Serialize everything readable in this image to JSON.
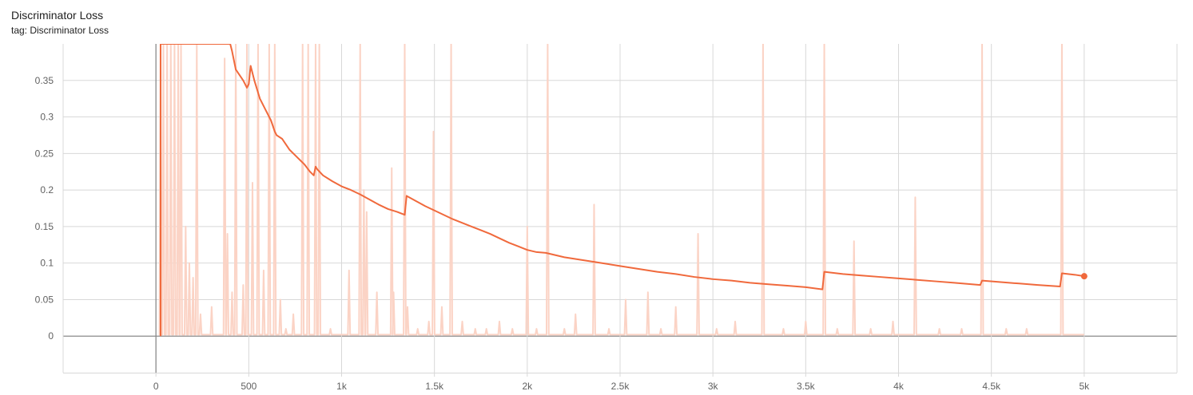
{
  "card": {
    "title": "Discriminator Loss",
    "tag": "tag: Discriminator Loss"
  },
  "colors": {
    "smoothed": "#f0693c",
    "raw": "#fbd3c5",
    "grid": "#d8d8d8",
    "zero_axis": "#8a8a8a"
  },
  "chart_data": {
    "type": "line",
    "title": "Discriminator Loss",
    "xlabel": "",
    "ylabel": "",
    "xlim": [
      -500,
      5500
    ],
    "ylim": [
      -0.05,
      0.4
    ],
    "grid": true,
    "x_ticks": [
      {
        "value": 0,
        "label": "0"
      },
      {
        "value": 500,
        "label": "500"
      },
      {
        "value": 1000,
        "label": "1k"
      },
      {
        "value": 1500,
        "label": "1.5k"
      },
      {
        "value": 2000,
        "label": "2k"
      },
      {
        "value": 2500,
        "label": "2.5k"
      },
      {
        "value": 3000,
        "label": "3k"
      },
      {
        "value": 3500,
        "label": "3.5k"
      },
      {
        "value": 4000,
        "label": "4k"
      },
      {
        "value": 4500,
        "label": "4.5k"
      },
      {
        "value": 5000,
        "label": "5k"
      }
    ],
    "y_ticks": [
      {
        "value": 0,
        "label": "0"
      },
      {
        "value": 0.05,
        "label": "0.05"
      },
      {
        "value": 0.1,
        "label": "0.1"
      },
      {
        "value": 0.15,
        "label": "0.15"
      },
      {
        "value": 0.2,
        "label": "0.2"
      },
      {
        "value": 0.25,
        "label": "0.25"
      },
      {
        "value": 0.3,
        "label": "0.3"
      },
      {
        "value": 0.35,
        "label": "0.35"
      }
    ],
    "series": [
      {
        "role": "smoothed",
        "x": [
          25,
          25,
          30,
          400,
          410,
          430,
          470,
          490,
          500,
          510,
          530,
          560,
          590,
          620,
          640,
          650,
          680,
          720,
          760,
          780,
          800,
          830,
          850,
          860,
          870,
          900,
          950,
          1000,
          1050,
          1100,
          1150,
          1200,
          1250,
          1300,
          1340,
          1350,
          1400,
          1450,
          1500,
          1550,
          1600,
          1650,
          1700,
          1750,
          1800,
          1850,
          1900,
          1950,
          2000,
          2050,
          2100,
          2150,
          2200,
          2300,
          2400,
          2500,
          2600,
          2700,
          2800,
          2900,
          3000,
          3100,
          3200,
          3300,
          3400,
          3500,
          3590,
          3600,
          3700,
          3800,
          3900,
          4000,
          4100,
          4200,
          4300,
          4440,
          4450,
          4550,
          4650,
          4750,
          4870,
          4880,
          4950,
          5000
        ],
        "y": [
          0,
          0.4,
          0.4,
          0.4,
          0.39,
          0.365,
          0.35,
          0.34,
          0.345,
          0.37,
          0.35,
          0.325,
          0.31,
          0.295,
          0.28,
          0.275,
          0.27,
          0.255,
          0.245,
          0.24,
          0.235,
          0.225,
          0.22,
          0.232,
          0.228,
          0.22,
          0.212,
          0.205,
          0.2,
          0.194,
          0.187,
          0.18,
          0.174,
          0.17,
          0.166,
          0.192,
          0.185,
          0.178,
          0.172,
          0.166,
          0.16,
          0.155,
          0.15,
          0.145,
          0.14,
          0.134,
          0.128,
          0.123,
          0.118,
          0.115,
          0.114,
          0.111,
          0.108,
          0.104,
          0.1,
          0.096,
          0.092,
          0.088,
          0.085,
          0.081,
          0.078,
          0.076,
          0.073,
          0.071,
          0.069,
          0.067,
          0.064,
          0.088,
          0.085,
          0.083,
          0.081,
          0.079,
          0.077,
          0.075,
          0.073,
          0.07,
          0.076,
          0.074,
          0.072,
          0.07,
          0.068,
          0.086,
          0.084,
          0.082
        ]
      },
      {
        "role": "raw",
        "x": [
          25,
          40,
          60,
          80,
          100,
          120,
          135,
          160,
          180,
          200,
          220,
          240,
          300,
          370,
          385,
          410,
          430,
          470,
          490,
          520,
          550,
          580,
          610,
          640,
          670,
          700,
          740,
          790,
          820,
          860,
          880,
          940,
          1040,
          1100,
          1120,
          1135,
          1190,
          1270,
          1280,
          1340,
          1355,
          1410,
          1470,
          1495,
          1540,
          1590,
          1650,
          1720,
          1780,
          1850,
          1920,
          2000,
          2050,
          2110,
          2200,
          2260,
          2360,
          2440,
          2530,
          2650,
          2720,
          2800,
          2920,
          3020,
          3120,
          3270,
          3380,
          3500,
          3600,
          3670,
          3760,
          3850,
          3970,
          4090,
          4220,
          4340,
          4450,
          4580,
          4690,
          4880
        ],
        "y": [
          0.4,
          0.4,
          0.4,
          0.4,
          0.4,
          0.4,
          0.4,
          0.15,
          0.1,
          0.08,
          0.4,
          0.03,
          0.04,
          0.38,
          0.14,
          0.06,
          0.4,
          0.07,
          0.4,
          0.21,
          0.4,
          0.09,
          0.4,
          0.4,
          0.05,
          0.01,
          0.03,
          0.4,
          0.4,
          0.4,
          0.4,
          0.01,
          0.09,
          0.4,
          0.2,
          0.17,
          0.06,
          0.23,
          0.06,
          0.4,
          0.04,
          0.01,
          0.02,
          0.28,
          0.04,
          0.4,
          0.02,
          0.01,
          0.01,
          0.02,
          0.01,
          0.15,
          0.01,
          0.4,
          0.01,
          0.03,
          0.18,
          0.01,
          0.05,
          0.06,
          0.01,
          0.04,
          0.14,
          0.01,
          0.02,
          0.4,
          0.01,
          0.02,
          0.4,
          0.01,
          0.13,
          0.01,
          0.02,
          0.19,
          0.01,
          0.01,
          0.4,
          0.01,
          0.01,
          0.4
        ]
      }
    ],
    "end_point": {
      "x": 5000,
      "y": 0.082
    }
  }
}
